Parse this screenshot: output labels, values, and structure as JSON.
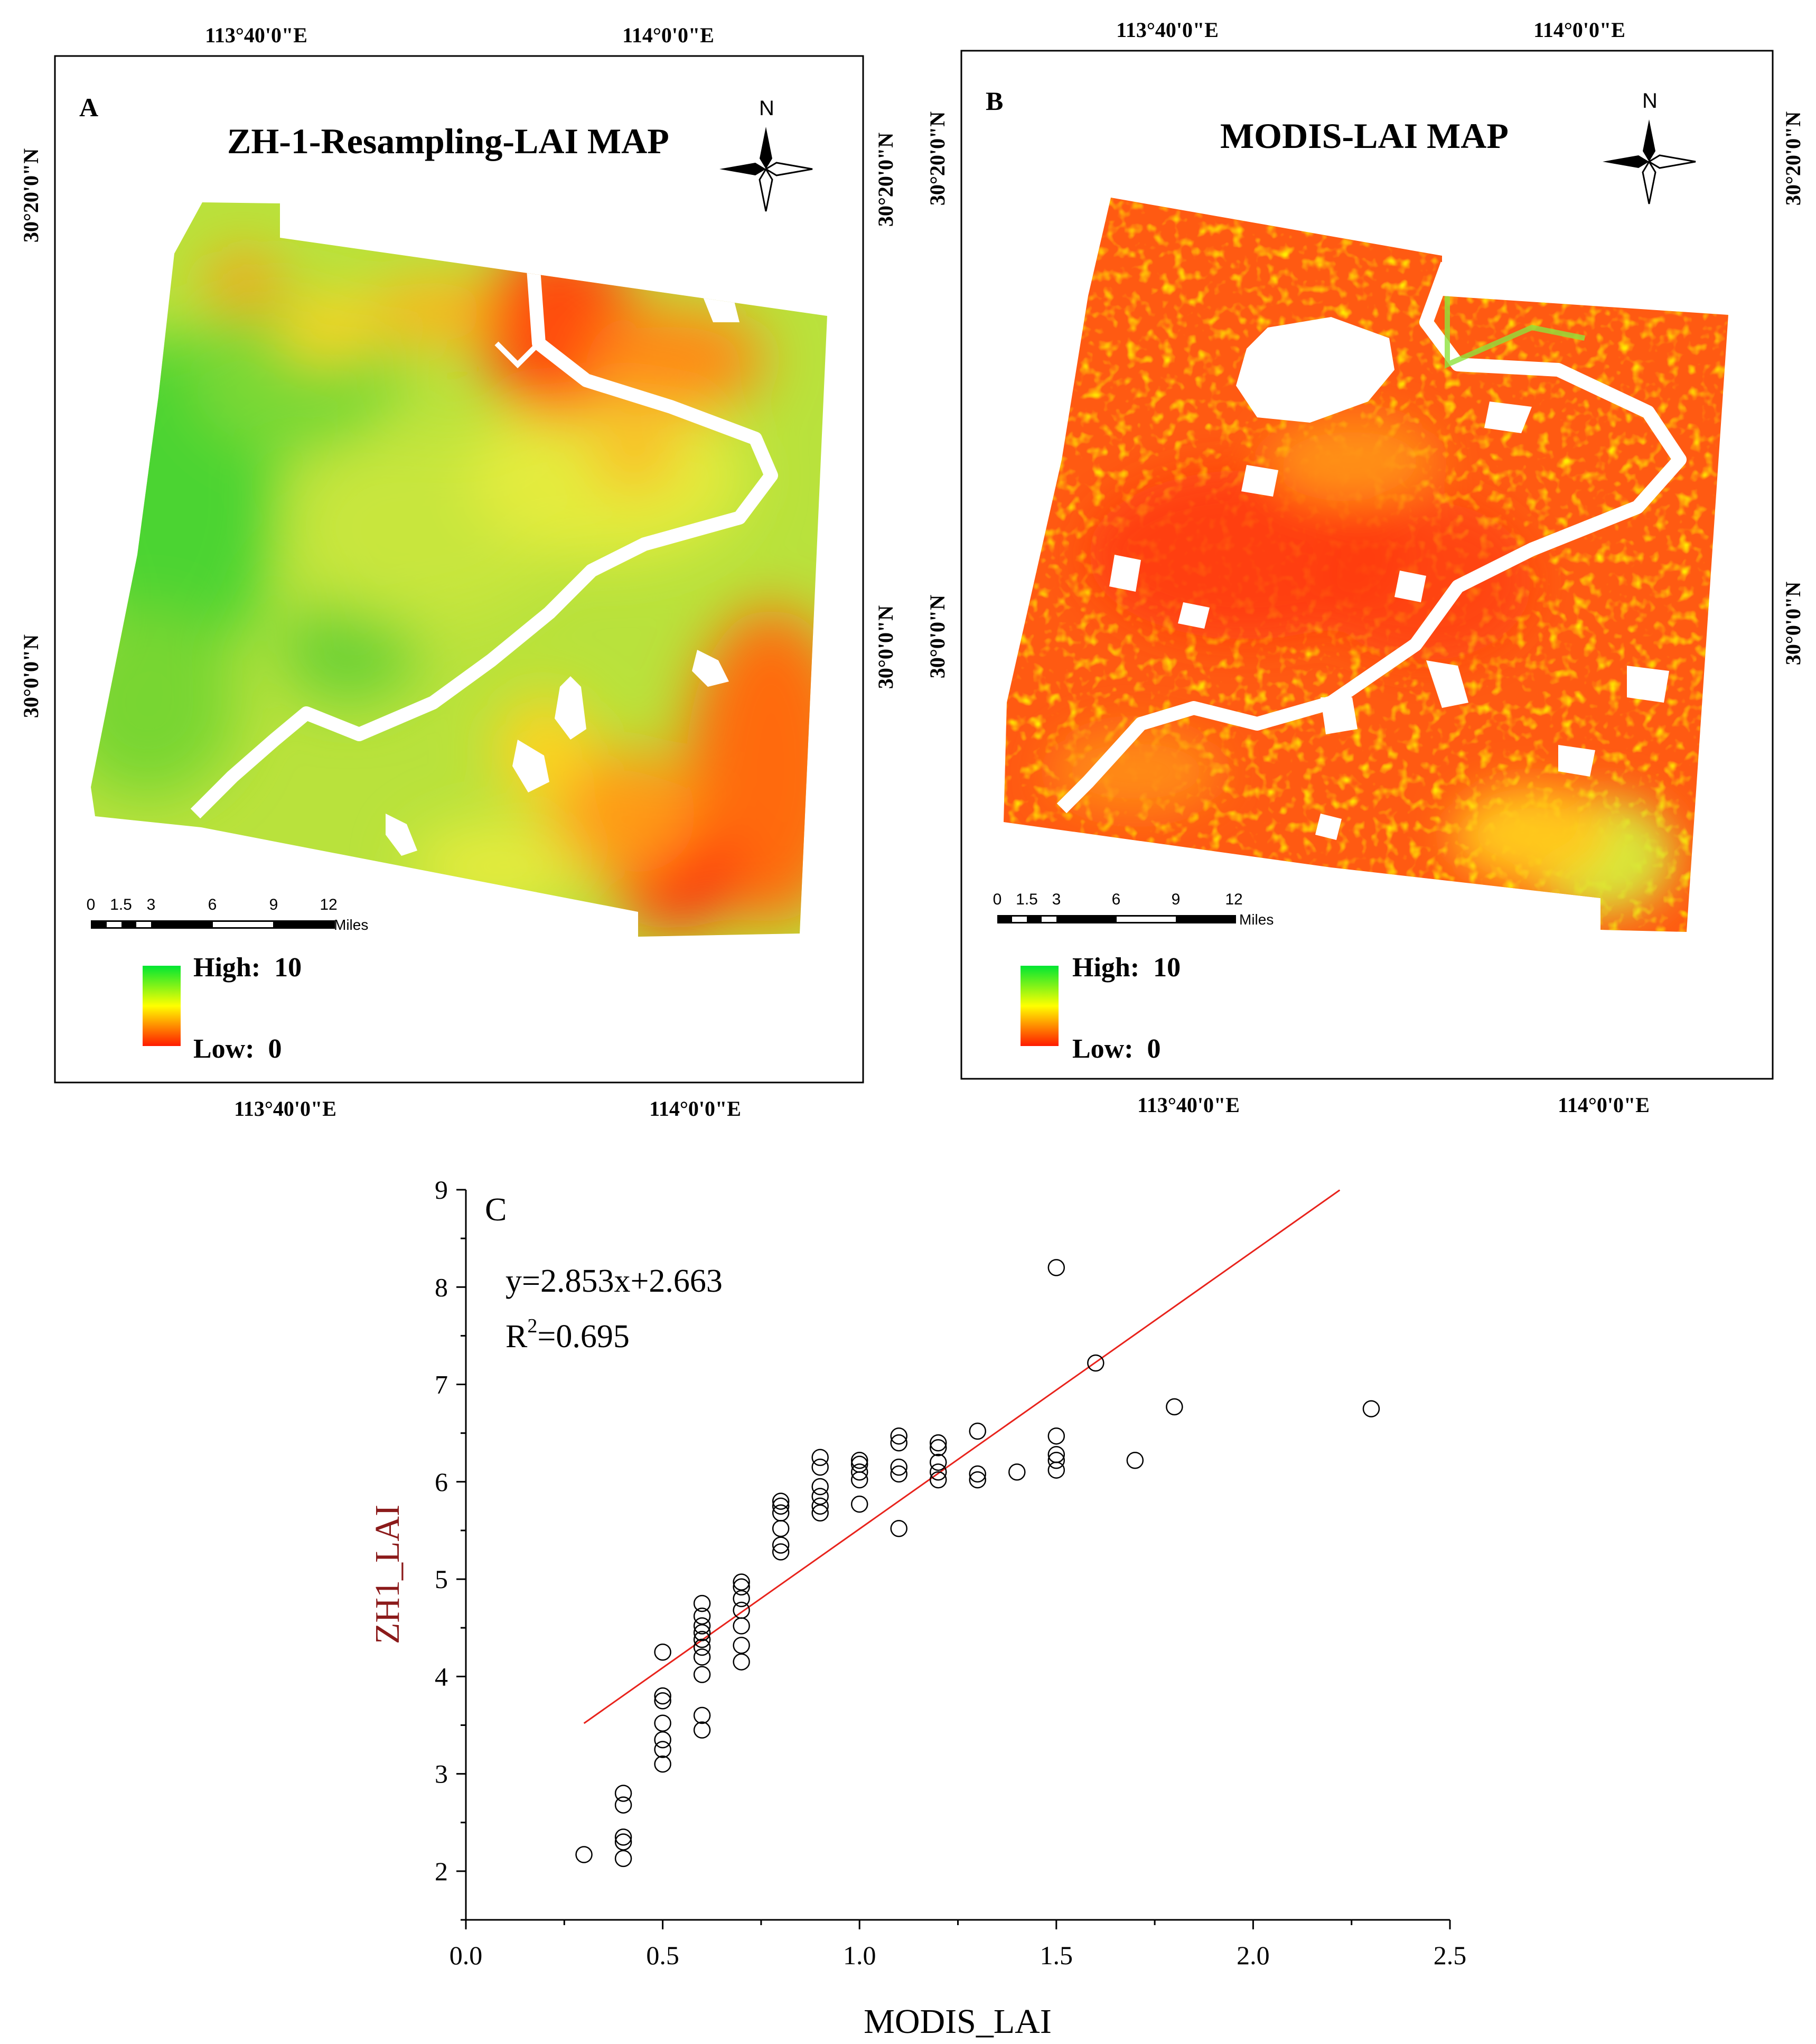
{
  "panel_a": {
    "letter": "A",
    "title": "ZH-1-Resampling-LAI MAP",
    "north": "N",
    "top_lon": [
      "113°40'0\"E",
      "114°0'0\"E"
    ],
    "bottom_lon": [
      "113°40'0\"E",
      "114°0'0\"E"
    ],
    "left_lat": [
      "30°20'0\"N",
      "30°0'0\"N"
    ],
    "right_lat": [
      "30°20'0\"N",
      "30°0'0\"N"
    ],
    "scale_ticks": [
      "0",
      "1.5",
      "3",
      "6",
      "9",
      "12"
    ],
    "scale_unit": "Miles",
    "legend_high": "High:  10",
    "legend_low": "Low:  0"
  },
  "panel_b": {
    "letter": "B",
    "title": "MODIS-LAI MAP",
    "north": "N",
    "top_lon": [
      "113°40'0\"E",
      "114°0'0\"E"
    ],
    "bottom_lon": [
      "113°40'0\"E",
      "114°0'0\"E"
    ],
    "left_lat": [
      "30°20'0\"N",
      "30°0'0\"N"
    ],
    "right_lat": [
      "30°20'0\"N",
      "30°0'0\"N"
    ],
    "scale_ticks": [
      "0",
      "1.5",
      "3",
      "6",
      "9",
      "12"
    ],
    "scale_unit": "Miles",
    "legend_high": "High:  10",
    "legend_low": "Low:  0"
  },
  "legend_colors": [
    "#00e632",
    "#ffff00",
    "#ff1a00"
  ],
  "water_color": "#ffffff",
  "chart_data": {
    "type": "scatter",
    "letter": "C",
    "xlabel": "MODIS_LAI",
    "ylabel": "ZH1_LAI",
    "xlim": [
      0.0,
      2.5
    ],
    "ylim": [
      1.5,
      9.0
    ],
    "x_ticks": [
      0.0,
      0.5,
      1.0,
      1.5,
      2.0,
      2.5
    ],
    "x_tick_labels": [
      "0.0",
      "0.5",
      "1.0",
      "1.5",
      "2.0",
      "2.5"
    ],
    "y_ticks": [
      2,
      3,
      4,
      5,
      6,
      7,
      8,
      9
    ],
    "y_tick_labels": [
      "2",
      "3",
      "4",
      "5",
      "6",
      "7",
      "8",
      "9"
    ],
    "equation": "y=2.853x+2.663",
    "r2_label": "R",
    "r2_sup": "2",
    "r2_value": "=0.695",
    "fit": {
      "slope": 2.853,
      "intercept": 2.663,
      "x_range": [
        0.3,
        2.22
      ],
      "color": "#e8231c"
    },
    "points": [
      [
        0.3,
        2.17
      ],
      [
        0.4,
        2.13
      ],
      [
        0.4,
        2.3
      ],
      [
        0.4,
        2.35
      ],
      [
        0.4,
        2.68
      ],
      [
        0.4,
        2.8
      ],
      [
        0.5,
        3.1
      ],
      [
        0.5,
        3.25
      ],
      [
        0.5,
        3.35
      ],
      [
        0.5,
        3.52
      ],
      [
        0.5,
        3.75
      ],
      [
        0.5,
        3.8
      ],
      [
        0.5,
        4.25
      ],
      [
        0.6,
        3.45
      ],
      [
        0.6,
        3.6
      ],
      [
        0.6,
        4.02
      ],
      [
        0.6,
        4.2
      ],
      [
        0.6,
        4.3
      ],
      [
        0.6,
        4.38
      ],
      [
        0.6,
        4.45
      ],
      [
        0.6,
        4.52
      ],
      [
        0.6,
        4.62
      ],
      [
        0.6,
        4.75
      ],
      [
        0.7,
        4.15
      ],
      [
        0.7,
        4.32
      ],
      [
        0.7,
        4.52
      ],
      [
        0.7,
        4.68
      ],
      [
        0.7,
        4.8
      ],
      [
        0.7,
        4.92
      ],
      [
        0.7,
        4.97
      ],
      [
        0.8,
        5.28
      ],
      [
        0.8,
        5.35
      ],
      [
        0.8,
        5.52
      ],
      [
        0.8,
        5.68
      ],
      [
        0.8,
        5.75
      ],
      [
        0.8,
        5.8
      ],
      [
        0.9,
        5.68
      ],
      [
        0.9,
        5.75
      ],
      [
        0.9,
        5.85
      ],
      [
        0.9,
        5.95
      ],
      [
        0.9,
        6.15
      ],
      [
        0.9,
        6.25
      ],
      [
        1.0,
        5.77
      ],
      [
        1.0,
        6.02
      ],
      [
        1.0,
        6.1
      ],
      [
        1.0,
        6.18
      ],
      [
        1.0,
        6.22
      ],
      [
        1.1,
        5.52
      ],
      [
        1.1,
        6.08
      ],
      [
        1.1,
        6.15
      ],
      [
        1.1,
        6.4
      ],
      [
        1.1,
        6.47
      ],
      [
        1.2,
        6.02
      ],
      [
        1.2,
        6.1
      ],
      [
        1.2,
        6.2
      ],
      [
        1.2,
        6.35
      ],
      [
        1.2,
        6.4
      ],
      [
        1.3,
        6.02
      ],
      [
        1.3,
        6.08
      ],
      [
        1.3,
        6.52
      ],
      [
        1.4,
        6.1
      ],
      [
        1.5,
        6.12
      ],
      [
        1.5,
        6.22
      ],
      [
        1.5,
        6.28
      ],
      [
        1.5,
        6.47
      ],
      [
        1.5,
        8.2
      ],
      [
        1.6,
        7.22
      ],
      [
        1.7,
        6.22
      ],
      [
        1.8,
        6.77
      ],
      [
        2.3,
        6.75
      ]
    ]
  }
}
